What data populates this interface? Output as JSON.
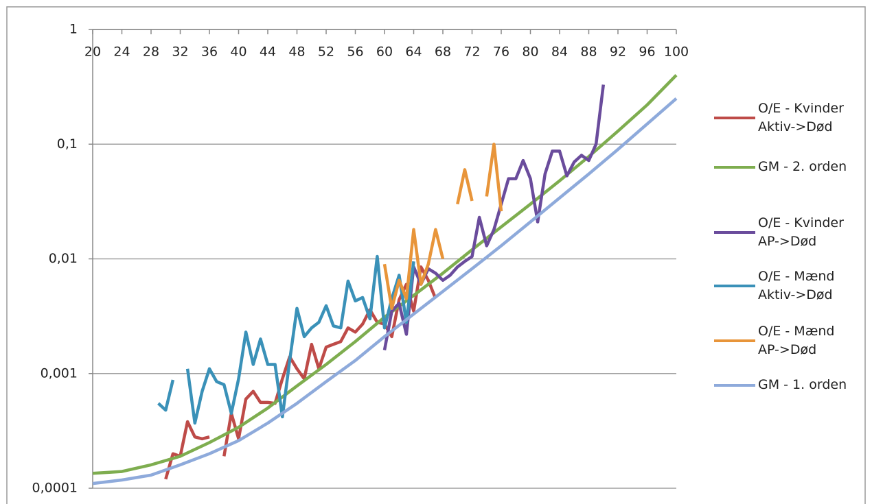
{
  "chart_data": {
    "type": "line",
    "log_y": true,
    "grid": true,
    "x_axis_position": "top",
    "xlim": [
      20,
      100
    ],
    "xticks": [
      20,
      24,
      28,
      32,
      36,
      40,
      44,
      48,
      52,
      56,
      60,
      64,
      68,
      72,
      76,
      80,
      84,
      88,
      92,
      96,
      100
    ],
    "ylim": [
      0.0001,
      1
    ],
    "yticks": [
      {
        "value": 0.0001,
        "label": "0,0001"
      },
      {
        "value": 0.001,
        "label": "0,001"
      },
      {
        "value": 0.01,
        "label": "0,01"
      },
      {
        "value": 0.1,
        "label": "0,1"
      },
      1
    ],
    "legend": "right",
    "series": [
      {
        "name": "O/E - Kvinder\nAktiv->Død",
        "color": "#be4b48",
        "x": [
          30,
          31,
          32,
          33,
          34,
          35,
          36,
          37,
          38,
          39,
          40,
          41,
          42,
          43,
          44,
          45,
          46,
          47,
          48,
          49,
          50,
          51,
          52,
          53,
          54,
          55,
          56,
          57,
          58,
          59,
          60,
          61,
          62,
          63,
          64,
          65,
          66,
          67
        ],
        "values": [
          0.00012,
          0.0002,
          0.00019,
          0.00038,
          0.00028,
          0.00027,
          0.00028,
          null,
          0.00019,
          0.00045,
          0.00027,
          0.0006,
          0.0007,
          0.00056,
          0.00056,
          0.00055,
          0.0009,
          0.0014,
          0.0011,
          0.0009,
          0.0018,
          0.0011,
          0.0017,
          0.0018,
          0.0019,
          0.0025,
          0.0023,
          0.0027,
          0.0036,
          0.0028,
          0.0027,
          0.0021,
          0.0044,
          0.006,
          0.0035,
          0.0085,
          0.0065,
          0.0045
        ]
      },
      {
        "name": "GM - 2. orden",
        "color": "#7ead4f",
        "x": [
          20,
          24,
          28,
          32,
          36,
          40,
          44,
          48,
          52,
          56,
          60,
          64,
          68,
          72,
          76,
          80,
          84,
          88,
          92,
          96,
          100
        ],
        "values": [
          0.000135,
          0.00014,
          0.00016,
          0.00019,
          0.00025,
          0.00034,
          0.0005,
          0.00078,
          0.0012,
          0.0019,
          0.0031,
          0.0048,
          0.0075,
          0.012,
          0.019,
          0.03,
          0.048,
          0.078,
          0.13,
          0.22,
          0.4
        ]
      },
      {
        "name": "O/E - Kvinder\nAP->Død",
        "color": "#6a4c9c",
        "x": [
          60,
          61,
          62,
          63,
          64,
          65,
          66,
          67,
          68,
          69,
          70,
          71,
          72,
          73,
          74,
          75,
          76,
          77,
          78,
          79,
          80,
          81,
          82,
          83,
          84,
          85,
          86,
          87,
          88,
          89,
          90
        ],
        "values": [
          0.0016,
          0.0035,
          0.0041,
          0.0022,
          0.0085,
          0.006,
          0.0082,
          0.0075,
          0.0065,
          0.0072,
          0.0085,
          0.0095,
          0.0105,
          0.023,
          0.013,
          0.018,
          0.03,
          0.05,
          0.05,
          0.072,
          0.05,
          0.021,
          0.055,
          0.087,
          0.087,
          0.053,
          0.07,
          0.08,
          0.072,
          0.1,
          0.33
        ]
      },
      {
        "name": "O/E - Mænd\nAktiv->Død",
        "color": "#3a91b8",
        "x": [
          29,
          30,
          31,
          32,
          33,
          34,
          35,
          36,
          37,
          38,
          39,
          40,
          41,
          42,
          43,
          44,
          45,
          46,
          47,
          48,
          49,
          50,
          51,
          52,
          53,
          54,
          55,
          56,
          57,
          58,
          59,
          60,
          61,
          62,
          63,
          64
        ],
        "values": [
          0.00055,
          0.00048,
          0.00088,
          null,
          0.0011,
          0.00037,
          0.0007,
          0.0011,
          0.00085,
          0.0008,
          0.00045,
          0.0009,
          0.0023,
          0.0012,
          0.002,
          0.0012,
          0.0012,
          0.00042,
          0.0013,
          0.0037,
          0.0021,
          0.0025,
          0.0028,
          0.0039,
          0.0026,
          0.0025,
          0.0064,
          0.0043,
          0.0046,
          0.003,
          0.0105,
          0.0025,
          0.0045,
          0.0072,
          0.0028,
          0.0095
        ]
      },
      {
        "name": "O/E - Mænd\nAP->Død",
        "color": "#e8953a",
        "x": [
          60,
          61,
          62,
          63,
          64,
          65,
          66,
          67,
          68,
          69,
          70,
          71,
          72,
          73,
          74,
          75,
          76
        ],
        "values": [
          0.009,
          0.0037,
          0.0065,
          0.0045,
          0.018,
          0.006,
          0.009,
          0.018,
          0.01,
          null,
          0.03,
          0.06,
          0.032,
          null,
          0.035,
          0.1,
          0.026
        ]
      },
      {
        "name": "GM - 1. orden",
        "color": "#8eaadb",
        "x": [
          20,
          24,
          28,
          32,
          36,
          40,
          44,
          48,
          52,
          56,
          60,
          64,
          68,
          72,
          76,
          80,
          84,
          88,
          92,
          96,
          100
        ],
        "values": [
          0.00011,
          0.000118,
          0.00013,
          0.00016,
          0.0002,
          0.00026,
          0.00037,
          0.00055,
          0.00085,
          0.0013,
          0.0021,
          0.0033,
          0.0052,
          0.0082,
          0.013,
          0.021,
          0.034,
          0.055,
          0.09,
          0.15,
          0.25
        ]
      }
    ]
  }
}
